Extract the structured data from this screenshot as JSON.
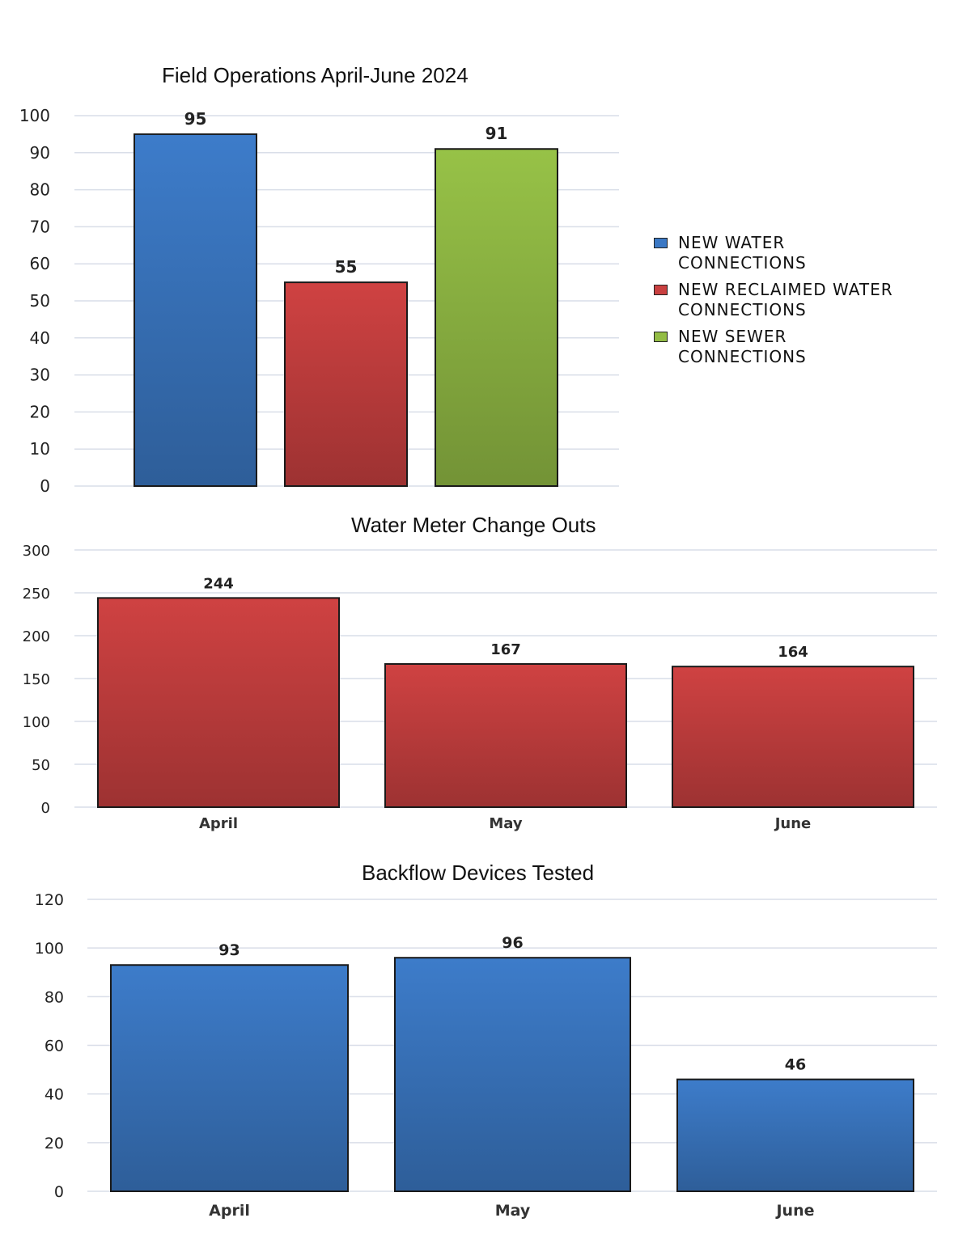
{
  "chart_data": [
    {
      "type": "bar",
      "title": "Field Operations April-June 2024",
      "categories": [
        "NEW WATER CONNECTIONS",
        "NEW RECLAIMED WATER CONNECTIONS",
        "NEW SEWER CONNECTIONS"
      ],
      "values": [
        95,
        55,
        91
      ],
      "colors": [
        "#3b78c4",
        "#c94040",
        "#93bc45"
      ],
      "ylim": [
        0,
        100
      ],
      "yticks": [
        0,
        10,
        20,
        30,
        40,
        50,
        60,
        70,
        80,
        90,
        100
      ],
      "xticks_shown": false,
      "legend": {
        "placement": "right",
        "entries": [
          {
            "line1": "NEW WATER",
            "line2": "CONNECTIONS",
            "color": "#3b78c4"
          },
          {
            "line1": "NEW RECLAIMED WATER",
            "line2": "CONNECTIONS",
            "color": "#c94040"
          },
          {
            "line1": "NEW SEWER",
            "line2": "CONNECTIONS",
            "color": "#93bc45"
          }
        ]
      },
      "grid": true
    },
    {
      "type": "bar",
      "title": "Water Meter Change Outs",
      "categories": [
        "April",
        "May",
        "June"
      ],
      "values": [
        244,
        167,
        164
      ],
      "colors": [
        "#c94040",
        "#c94040",
        "#c94040"
      ],
      "ylim": [
        0,
        300
      ],
      "yticks": [
        0,
        50,
        100,
        150,
        200,
        250,
        300
      ],
      "xticks_shown": true,
      "grid": true
    },
    {
      "type": "bar",
      "title": "Backflow Devices Tested",
      "categories": [
        "April",
        "May",
        "June"
      ],
      "values": [
        93,
        96,
        46
      ],
      "colors": [
        "#3b78c4",
        "#3b78c4",
        "#3b78c4"
      ],
      "ylim": [
        0,
        120
      ],
      "yticks": [
        0,
        20,
        40,
        60,
        80,
        100,
        120
      ],
      "xticks_shown": true,
      "grid": true
    }
  ]
}
